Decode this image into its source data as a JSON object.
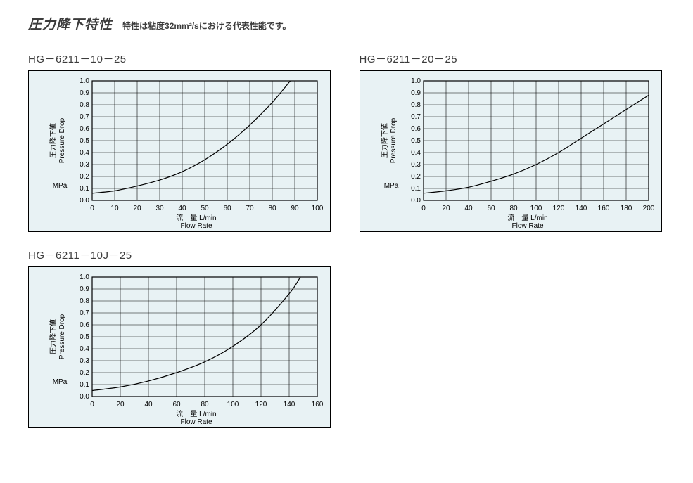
{
  "header": {
    "title": "圧力降下特性",
    "subtitle": "特性は粘度32mm²/sにおける代表性能です。"
  },
  "common_axis": {
    "y_label_jp": "圧力降下値",
    "y_label_en": "Pressure Drop",
    "y_unit": "MPa",
    "x_label_jp": "流　量",
    "x_label_en": "Flow Rate",
    "x_unit": "L/min",
    "ylim": [
      0,
      1.0
    ],
    "ytick_step": 0.1,
    "grid_color": "#000000",
    "background_color": "#e8f2f4",
    "curve_color": "#000000",
    "curve_width": 1.2,
    "axis_font_size": 10,
    "label_font_size": 10
  },
  "charts": [
    {
      "name": "HG－6211－10－25",
      "xlim": [
        0,
        100
      ],
      "xtick_step": 10,
      "curve": [
        {
          "x": 0,
          "y": 0.06
        },
        {
          "x": 10,
          "y": 0.08
        },
        {
          "x": 20,
          "y": 0.12
        },
        {
          "x": 30,
          "y": 0.17
        },
        {
          "x": 40,
          "y": 0.24
        },
        {
          "x": 50,
          "y": 0.34
        },
        {
          "x": 60,
          "y": 0.47
        },
        {
          "x": 70,
          "y": 0.63
        },
        {
          "x": 80,
          "y": 0.82
        },
        {
          "x": 88,
          "y": 1.0
        }
      ]
    },
    {
      "name": "HG－6211－20－25",
      "xlim": [
        0,
        200
      ],
      "xtick_step": 20,
      "curve": [
        {
          "x": 0,
          "y": 0.06
        },
        {
          "x": 20,
          "y": 0.08
        },
        {
          "x": 40,
          "y": 0.11
        },
        {
          "x": 60,
          "y": 0.16
        },
        {
          "x": 80,
          "y": 0.22
        },
        {
          "x": 100,
          "y": 0.3
        },
        {
          "x": 120,
          "y": 0.4
        },
        {
          "x": 140,
          "y": 0.52
        },
        {
          "x": 160,
          "y": 0.64
        },
        {
          "x": 180,
          "y": 0.76
        },
        {
          "x": 200,
          "y": 0.88
        }
      ]
    },
    {
      "name": "HG－6211－10J－25",
      "xlim": [
        0,
        160
      ],
      "xtick_step": 20,
      "curve": [
        {
          "x": 0,
          "y": 0.05
        },
        {
          "x": 20,
          "y": 0.08
        },
        {
          "x": 40,
          "y": 0.13
        },
        {
          "x": 60,
          "y": 0.2
        },
        {
          "x": 80,
          "y": 0.29
        },
        {
          "x": 100,
          "y": 0.42
        },
        {
          "x": 120,
          "y": 0.6
        },
        {
          "x": 140,
          "y": 0.86
        },
        {
          "x": 148,
          "y": 1.0
        }
      ]
    }
  ]
}
